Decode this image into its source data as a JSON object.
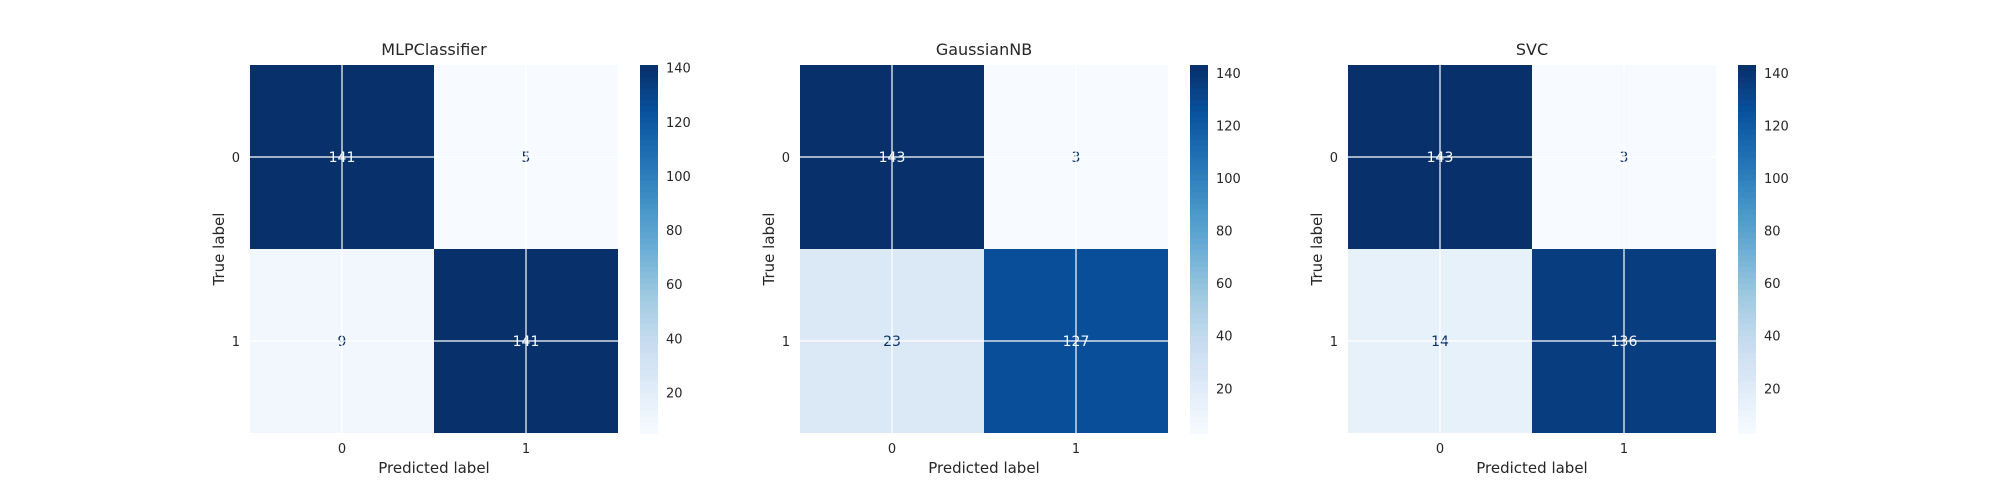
{
  "chart_data": [
    {
      "type": "heatmap",
      "title": "MLPClassifier",
      "xlabel": "Predicted label",
      "ylabel": "True label",
      "x_ticks": [
        "0",
        "1"
      ],
      "y_ticks": [
        "0",
        "1"
      ],
      "matrix": [
        [
          141,
          5
        ],
        [
          9,
          141
        ]
      ],
      "cell_labels": [
        [
          "141",
          "5"
        ],
        [
          "9",
          "141"
        ]
      ],
      "colorbar": {
        "min": 5,
        "max": 141,
        "ticks": [
          20,
          40,
          60,
          80,
          100,
          120,
          140
        ]
      },
      "colormap": "Blues",
      "grid": true
    },
    {
      "type": "heatmap",
      "title": "GaussianNB",
      "xlabel": "Predicted label",
      "ylabel": "True label",
      "x_ticks": [
        "0",
        "1"
      ],
      "y_ticks": [
        "0",
        "1"
      ],
      "matrix": [
        [
          143,
          3
        ],
        [
          23,
          127
        ]
      ],
      "cell_labels": [
        [
          "143",
          "3"
        ],
        [
          "23",
          "127"
        ]
      ],
      "colorbar": {
        "min": 3,
        "max": 143,
        "ticks": [
          20,
          40,
          60,
          80,
          100,
          120,
          140
        ]
      },
      "colormap": "Blues",
      "grid": true
    },
    {
      "type": "heatmap",
      "title": "SVC",
      "xlabel": "Predicted label",
      "ylabel": "True label",
      "x_ticks": [
        "0",
        "1"
      ],
      "y_ticks": [
        "0",
        "1"
      ],
      "matrix": [
        [
          143,
          3
        ],
        [
          14,
          136
        ]
      ],
      "cell_labels": [
        [
          "143",
          "3"
        ],
        [
          "14",
          "136"
        ]
      ],
      "colorbar": {
        "min": 3,
        "max": 143,
        "ticks": [
          20,
          40,
          60,
          80,
          100,
          120,
          140
        ]
      },
      "colormap": "Blues",
      "grid": true
    }
  ]
}
